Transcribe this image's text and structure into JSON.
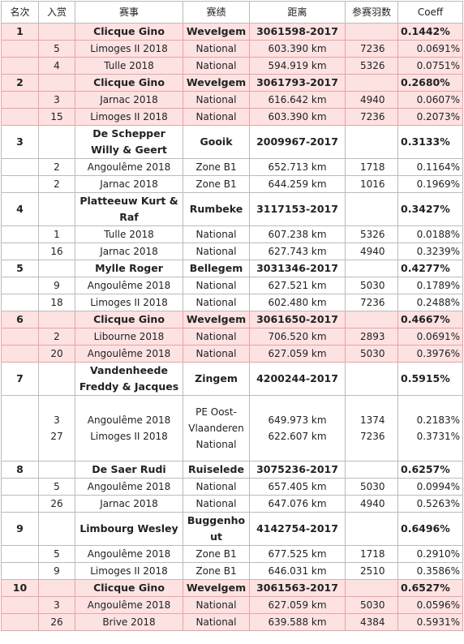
{
  "header": [
    "名次",
    "入赏",
    "赛事",
    "赛绩",
    "距离",
    "参赛羽数",
    "Coeff"
  ],
  "groups": [
    {
      "rank": "1",
      "name": "Clicque Gino",
      "location": "Wevelgem",
      "ring": "3061598-2017",
      "coeff": "0.1442%",
      "highlight": true,
      "subs": [
        {
          "prize": "5",
          "race": "Limoges II 2018",
          "result": "National",
          "distance": "603.390 km",
          "count": "7236",
          "coeff": "0.0691%"
        },
        {
          "prize": "4",
          "race": "Tulle 2018",
          "result": "National",
          "distance": "594.919 km",
          "count": "5326",
          "coeff": "0.0751%"
        }
      ]
    },
    {
      "rank": "2",
      "name": "Clicque Gino",
      "location": "Wevelgem",
      "ring": "3061793-2017",
      "coeff": "0.2680%",
      "highlight": true,
      "subs": [
        {
          "prize": "3",
          "race": "Jarnac 2018",
          "result": "National",
          "distance": "616.642 km",
          "count": "4940",
          "coeff": "0.0607%"
        },
        {
          "prize": "15",
          "race": "Limoges II 2018",
          "result": "National",
          "distance": "603.390 km",
          "count": "7236",
          "coeff": "0.2073%"
        }
      ]
    },
    {
      "rank": "3",
      "name": "De Schepper Willy & Geert",
      "location": "Gooik",
      "ring": "2009967-2017",
      "coeff": "0.3133%",
      "highlight": false,
      "subs": [
        {
          "prize": "2",
          "race": "Angoulême 2018",
          "result": "Zone B1",
          "distance": "652.713 km",
          "count": "1718",
          "coeff": "0.1164%"
        },
        {
          "prize": "2",
          "race": "Jarnac 2018",
          "result": "Zone B1",
          "distance": "644.259 km",
          "count": "1016",
          "coeff": "0.1969%"
        }
      ]
    },
    {
      "rank": "4",
      "name": "Platteeuw Kurt & Raf",
      "location": "Rumbeke",
      "ring": "3117153-2017",
      "coeff": "0.3427%",
      "highlight": false,
      "subs": [
        {
          "prize": "1",
          "race": "Tulle 2018",
          "result": "National",
          "distance": "607.238 km",
          "count": "5326",
          "coeff": "0.0188%"
        },
        {
          "prize": "16",
          "race": "Jarnac 2018",
          "result": "National",
          "distance": "627.743 km",
          "count": "4940",
          "coeff": "0.3239%"
        }
      ]
    },
    {
      "rank": "5",
      "name": "Mylle Roger",
      "location": "Bellegem",
      "ring": "3031346-2017",
      "coeff": "0.4277%",
      "highlight": false,
      "subs": [
        {
          "prize": "9",
          "race": "Angoulême 2018",
          "result": "National",
          "distance": "627.521 km",
          "count": "5030",
          "coeff": "0.1789%"
        },
        {
          "prize": "18",
          "race": "Limoges II 2018",
          "result": "National",
          "distance": "602.480 km",
          "count": "7236",
          "coeff": "0.2488%"
        }
      ]
    },
    {
      "rank": "6",
      "name": "Clicque Gino",
      "location": "Wevelgem",
      "ring": "3061650-2017",
      "coeff": "0.4667%",
      "highlight": true,
      "subs": [
        {
          "prize": "2",
          "race": "Libourne 2018",
          "result": "National",
          "distance": "706.520 km",
          "count": "2893",
          "coeff": "0.0691%"
        },
        {
          "prize": "20",
          "race": "Angoulême 2018",
          "result": "National",
          "distance": "627.059 km",
          "count": "5030",
          "coeff": "0.3976%"
        }
      ]
    },
    {
      "rank": "7",
      "name": "Vandenheede Freddy & Jacques",
      "location": "Zingem",
      "ring": "4200244-2017",
      "coeff": "0.5915%",
      "highlight": false,
      "subs": [
        {
          "prize": [
            "3",
            "27"
          ],
          "race": [
            "Angoulême 2018",
            "Limoges II 2018"
          ],
          "result": "PE Oost-Vlaanderen National",
          "distance": [
            "649.973 km",
            "622.607 km"
          ],
          "count": [
            "1374",
            "7236"
          ],
          "coeff": [
            "0.2183%",
            "0.3731%"
          ]
        }
      ]
    },
    {
      "rank": "8",
      "name": "De Saer Rudi",
      "location": "Ruiselede",
      "ring": "3075236-2017",
      "coeff": "0.6257%",
      "highlight": false,
      "subs": [
        {
          "prize": "5",
          "race": "Angoulême 2018",
          "result": "National",
          "distance": "657.405 km",
          "count": "5030",
          "coeff": "0.0994%"
        },
        {
          "prize": "26",
          "race": "Jarnac 2018",
          "result": "National",
          "distance": "647.076 km",
          "count": "4940",
          "coeff": "0.5263%"
        }
      ]
    },
    {
      "rank": "9",
      "name": "Limbourg Wesley",
      "location": "Buggenhout",
      "ring": "4142754-2017",
      "coeff": "0.6496%",
      "highlight": false,
      "subs": [
        {
          "prize": "5",
          "race": "Angoulême 2018",
          "result": "Zone B1",
          "distance": "677.525 km",
          "count": "1718",
          "coeff": "0.2910%"
        },
        {
          "prize": "9",
          "race": "Limoges II 2018",
          "result": "Zone B1",
          "distance": "646.031 km",
          "count": "2510",
          "coeff": "0.3586%"
        }
      ]
    },
    {
      "rank": "10",
      "name": "Clicque Gino",
      "location": "Wevelgem",
      "ring": "3061563-2017",
      "coeff": "0.6527%",
      "highlight": true,
      "subs": [
        {
          "prize": "3",
          "race": "Angoulême 2018",
          "result": "National",
          "distance": "627.059 km",
          "count": "5030",
          "coeff": "0.0596%"
        },
        {
          "prize": "26",
          "race": "Brive 2018",
          "result": "National",
          "distance": "639.588 km",
          "count": "4384",
          "coeff": "0.5931%"
        }
      ]
    }
  ]
}
